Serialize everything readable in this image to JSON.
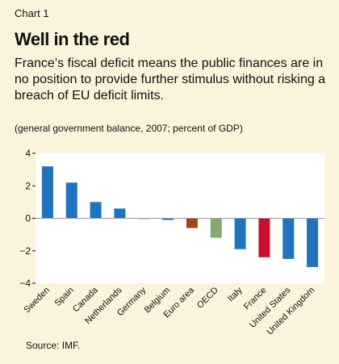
{
  "header": {
    "chart_number": "Chart 1",
    "title": "Well in the red",
    "subtitle": "France’s fiscal deficit means the public finances are in no position to provide further stimulus without risking a breach of EU deficit limits.",
    "units": "(general government balance, 2007; percent of GDP)"
  },
  "footer": {
    "source": "Source: IMF."
  },
  "colors": {
    "background": "#fbf3dc",
    "plot_background": "#ffffff",
    "bar_default": "#1f74bd",
    "bar_euro_area": "#a0461c",
    "bar_oecd": "#86a873",
    "bar_france": "#c8102e"
  },
  "chart_data": {
    "type": "bar",
    "title": "Well in the red",
    "ylabel": "",
    "xlabel": "",
    "ylim": [
      -4,
      4
    ],
    "yticks": [
      -4,
      -2,
      0,
      2,
      4
    ],
    "ytick_labels": [
      "−4",
      "−2",
      "0",
      "2",
      "4"
    ],
    "grid": false,
    "categories": [
      "Sweden",
      "Spain",
      "Canada",
      "Netherlands",
      "Germany",
      "Belgium",
      "Euro area",
      "OECD",
      "Italy",
      "France",
      "United States",
      "United Kingdom"
    ],
    "values": [
      3.2,
      2.2,
      1.0,
      0.6,
      0.0,
      -0.1,
      -0.6,
      -1.2,
      -1.9,
      -2.4,
      -2.5,
      -3.0
    ],
    "bar_colors": [
      "#1f74bd",
      "#1f74bd",
      "#1f74bd",
      "#1f74bd",
      "#1f74bd",
      "#1f74bd",
      "#a0461c",
      "#86a873",
      "#1f74bd",
      "#c8102e",
      "#1f74bd",
      "#1f74bd"
    ]
  }
}
